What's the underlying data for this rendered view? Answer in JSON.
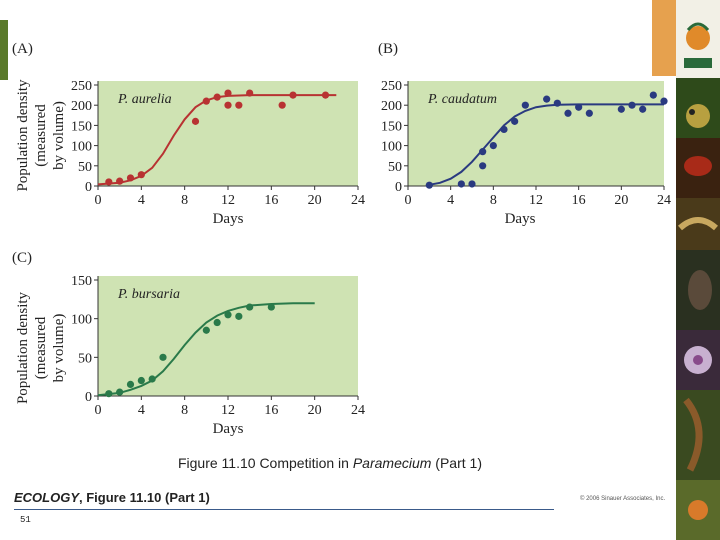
{
  "chart_data": [
    {
      "type": "line",
      "panel": "(A)",
      "title": "P. aurelia",
      "xlabel": "Days",
      "ylabel": [
        "Population density",
        "(measured",
        "by volume)"
      ],
      "xlim": [
        0,
        24
      ],
      "ylim": [
        0,
        250
      ],
      "xticks": [
        0,
        4,
        8,
        12,
        16,
        20,
        24
      ],
      "yticks": [
        0,
        50,
        100,
        150,
        200,
        250
      ],
      "points": {
        "x": [
          1,
          2,
          3,
          4,
          9,
          10,
          11,
          12,
          12,
          13,
          14,
          17,
          18,
          21
        ],
        "y": [
          10,
          12,
          20,
          28,
          160,
          210,
          220,
          230,
          200,
          200,
          230,
          200,
          225,
          225
        ]
      },
      "curve": {
        "x": [
          0,
          2,
          3,
          4,
          5,
          6,
          7,
          8,
          9,
          10,
          11,
          12,
          14,
          16,
          18,
          20,
          22
        ],
        "y": [
          4,
          8,
          14,
          25,
          45,
          80,
          125,
          165,
          195,
          212,
          220,
          223,
          225,
          225,
          225,
          225,
          225
        ]
      },
      "color": "#b83232"
    },
    {
      "type": "line",
      "panel": "(B)",
      "title": "P. caudatum",
      "xlabel": "Days",
      "ylabel": [],
      "xlim": [
        0,
        24
      ],
      "ylim": [
        0,
        250
      ],
      "xticks": [
        0,
        4,
        8,
        12,
        16,
        20,
        24
      ],
      "yticks": [
        0,
        50,
        100,
        150,
        200,
        250
      ],
      "points": {
        "x": [
          2,
          5,
          6,
          7,
          7,
          8,
          9,
          10,
          11,
          13,
          14,
          15,
          16,
          17,
          20,
          21,
          22,
          23,
          24
        ],
        "y": [
          2,
          5,
          5,
          50,
          85,
          100,
          140,
          160,
          200,
          215,
          205,
          180,
          195,
          180,
          190,
          200,
          190,
          225,
          210
        ],
        "y_fix": [
          2,
          5,
          5,
          50,
          85,
          100,
          140,
          160,
          200,
          215,
          205,
          180,
          195,
          180,
          190,
          200,
          190,
          225,
          210
        ]
      },
      "curve": {
        "x": [
          2,
          3,
          4,
          5,
          6,
          7,
          8,
          9,
          10,
          11,
          12,
          13,
          14,
          16,
          18,
          20,
          22,
          24
        ],
        "y": [
          3,
          8,
          18,
          35,
          60,
          90,
          120,
          150,
          172,
          186,
          195,
          199,
          201,
          202,
          202,
          202,
          202,
          202
        ]
      },
      "color": "#2a3a80"
    },
    {
      "type": "line",
      "panel": "(C)",
      "title": "P. bursaria",
      "xlabel": "Days",
      "ylabel": [
        "Population density",
        "(measured",
        "by volume)"
      ],
      "xlim": [
        0,
        24
      ],
      "ylim": [
        0,
        150
      ],
      "xticks": [
        0,
        4,
        8,
        12,
        16,
        20,
        24
      ],
      "yticks": [
        0,
        50,
        100,
        150
      ],
      "points": {
        "x": [
          1,
          2,
          3,
          4,
          5,
          6,
          10,
          11,
          12,
          13,
          14,
          16
        ],
        "y": [
          3,
          5,
          15,
          20,
          22,
          50,
          85,
          95,
          105,
          103,
          115,
          115
        ]
      },
      "curve": {
        "x": [
          0,
          2,
          3,
          4,
          5,
          6,
          7,
          8,
          9,
          10,
          11,
          12,
          13,
          14,
          16,
          18,
          20
        ],
        "y": [
          1,
          4,
          8,
          13,
          20,
          32,
          48,
          66,
          82,
          95,
          104,
          110,
          114,
          117,
          119,
          120,
          120
        ]
      },
      "color": "#2a7a4a"
    }
  ],
  "caption": {
    "lead": "Figure 11.10  Competition in ",
    "genus": "Paramecium",
    "tail": " (Part 1)"
  },
  "credit": {
    "book": "ECOLOGY",
    "rest": ", Figure 11.10 (Part 1)"
  },
  "copyright": "© 2006 Sinauer Associates, Inc.",
  "page_number": "51",
  "colors": {
    "panel_bg": "#cfe3b3",
    "axis": "#333333",
    "sidebar_tiles": [
      "#2e5c2a",
      "#6a3c1a",
      "#8a2a18",
      "#5a4a2a",
      "#3a4a2a",
      "#8a7a8a",
      "#4a5a2a",
      "#6a4a2a"
    ]
  }
}
